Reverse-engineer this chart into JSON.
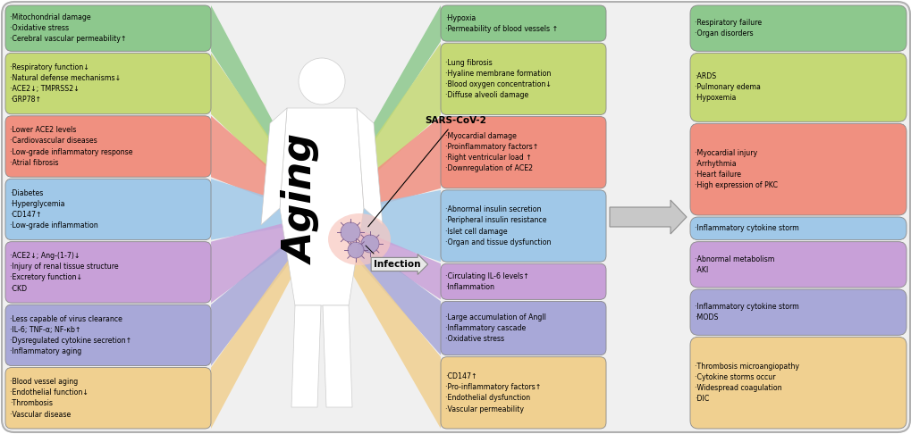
{
  "left_panels": [
    {
      "color": "#8dc88d",
      "text": "·Mitochondrial damage\n·Oxidative stress\n·Cerebral vascular permeability↑"
    },
    {
      "color": "#c5d975",
      "text": "·Respiratory function↓\n·Natural defense mechanisms↓\n·ACE2↓; TMPRSS2↓\n·GRP78↑"
    },
    {
      "color": "#f09080",
      "text": "·Lower ACE2 levels\n·Cardiovascular diseases\n·Low-grade inflammatory response\n·Atrial fibrosis"
    },
    {
      "color": "#a0c8e8",
      "text": "·Diabetes\n·Hyperglycemia\n·CD147↑\n·Low-grade inflammation"
    },
    {
      "color": "#c8a0d8",
      "text": "·ACE2↓; Ang-(1-7)↓\n·Injury of renal tissue structure\n·Excretory function↓\n·CKD"
    },
    {
      "color": "#a8a8d8",
      "text": "·Less capable of virus clearance\n·IL-6; TNF-α; NF-κb↑\n·Dysregulated cytokine secretion↑\n·Inflammatory aging"
    },
    {
      "color": "#f0d090",
      "text": "·Blood vessel aging\n·Endothelial function↓\n·Thrombosis\n·Vascular disease"
    }
  ],
  "middle_panels": [
    {
      "color": "#8dc88d",
      "text": "·Hypoxia\n·Permeability of blood vessels ↑"
    },
    {
      "color": "#c5d975",
      "text": "·Lung fibrosis\n·Hyaline membrane formation\n·Blood oxygen concentration↓\n·Diffuse alveoli damage"
    },
    {
      "color": "#f09080",
      "text": "·Myocardial damage\n·Proinflammatory factors↑\n·Right ventricular load ↑\n·Downregulation of ACE2"
    },
    {
      "color": "#a0c8e8",
      "text": "·Abnormal insulin secretion\n·Peripheral insulin resistance\n·Islet cell damage\n·Organ and tissue dysfunction"
    },
    {
      "color": "#c8a0d8",
      "text": "·Circulating IL-6 levels↑\n·Inflammation"
    },
    {
      "color": "#a8a8d8",
      "text": "·Large accumulation of AngII\n·Inflammatory cascade\n·Oxidative stress"
    },
    {
      "color": "#f0d090",
      "text": "·CD147↑\n·Pro-inflammatory factors↑\n·Endothelial dysfunction\n·Vascular permeability"
    }
  ],
  "right_panels": [
    {
      "color": "#8dc88d",
      "text": "·Respiratory failure\n·Organ disorders"
    },
    {
      "color": "#c5d975",
      "text": "·ARDS\n·Pulmonary edema\n·Hypoxemia"
    },
    {
      "color": "#f09080",
      "text": "·Myocardial injury\n·Arrhythmia\n·Heart failure\n·High expression of PKC"
    },
    {
      "color": "#a0c8e8",
      "text": "·Inflammatory cytokine storm"
    },
    {
      "color": "#c8a0d8",
      "text": "·Abnormal metabolism\n·AKI"
    },
    {
      "color": "#a8a8d8",
      "text": "·Inflammatory cytokine storm\n·MODS"
    },
    {
      "color": "#f0d090",
      "text": "·Thrombosis microangiopathy\n·Cytokine storms occur\n·Widespread coagulation\n·DIC"
    }
  ],
  "aging_text": "Aging",
  "sars_text": "SARS-CoV-2",
  "infection_text": "Infection",
  "bg_color": "#ffffff",
  "left_heights_rel": [
    3,
    4,
    4,
    4,
    4,
    4,
    4
  ],
  "mid_heights_rel": [
    2,
    4,
    4,
    4,
    2,
    3,
    4
  ],
  "right_heights_rel": [
    2,
    3,
    4,
    1,
    2,
    2,
    4
  ]
}
